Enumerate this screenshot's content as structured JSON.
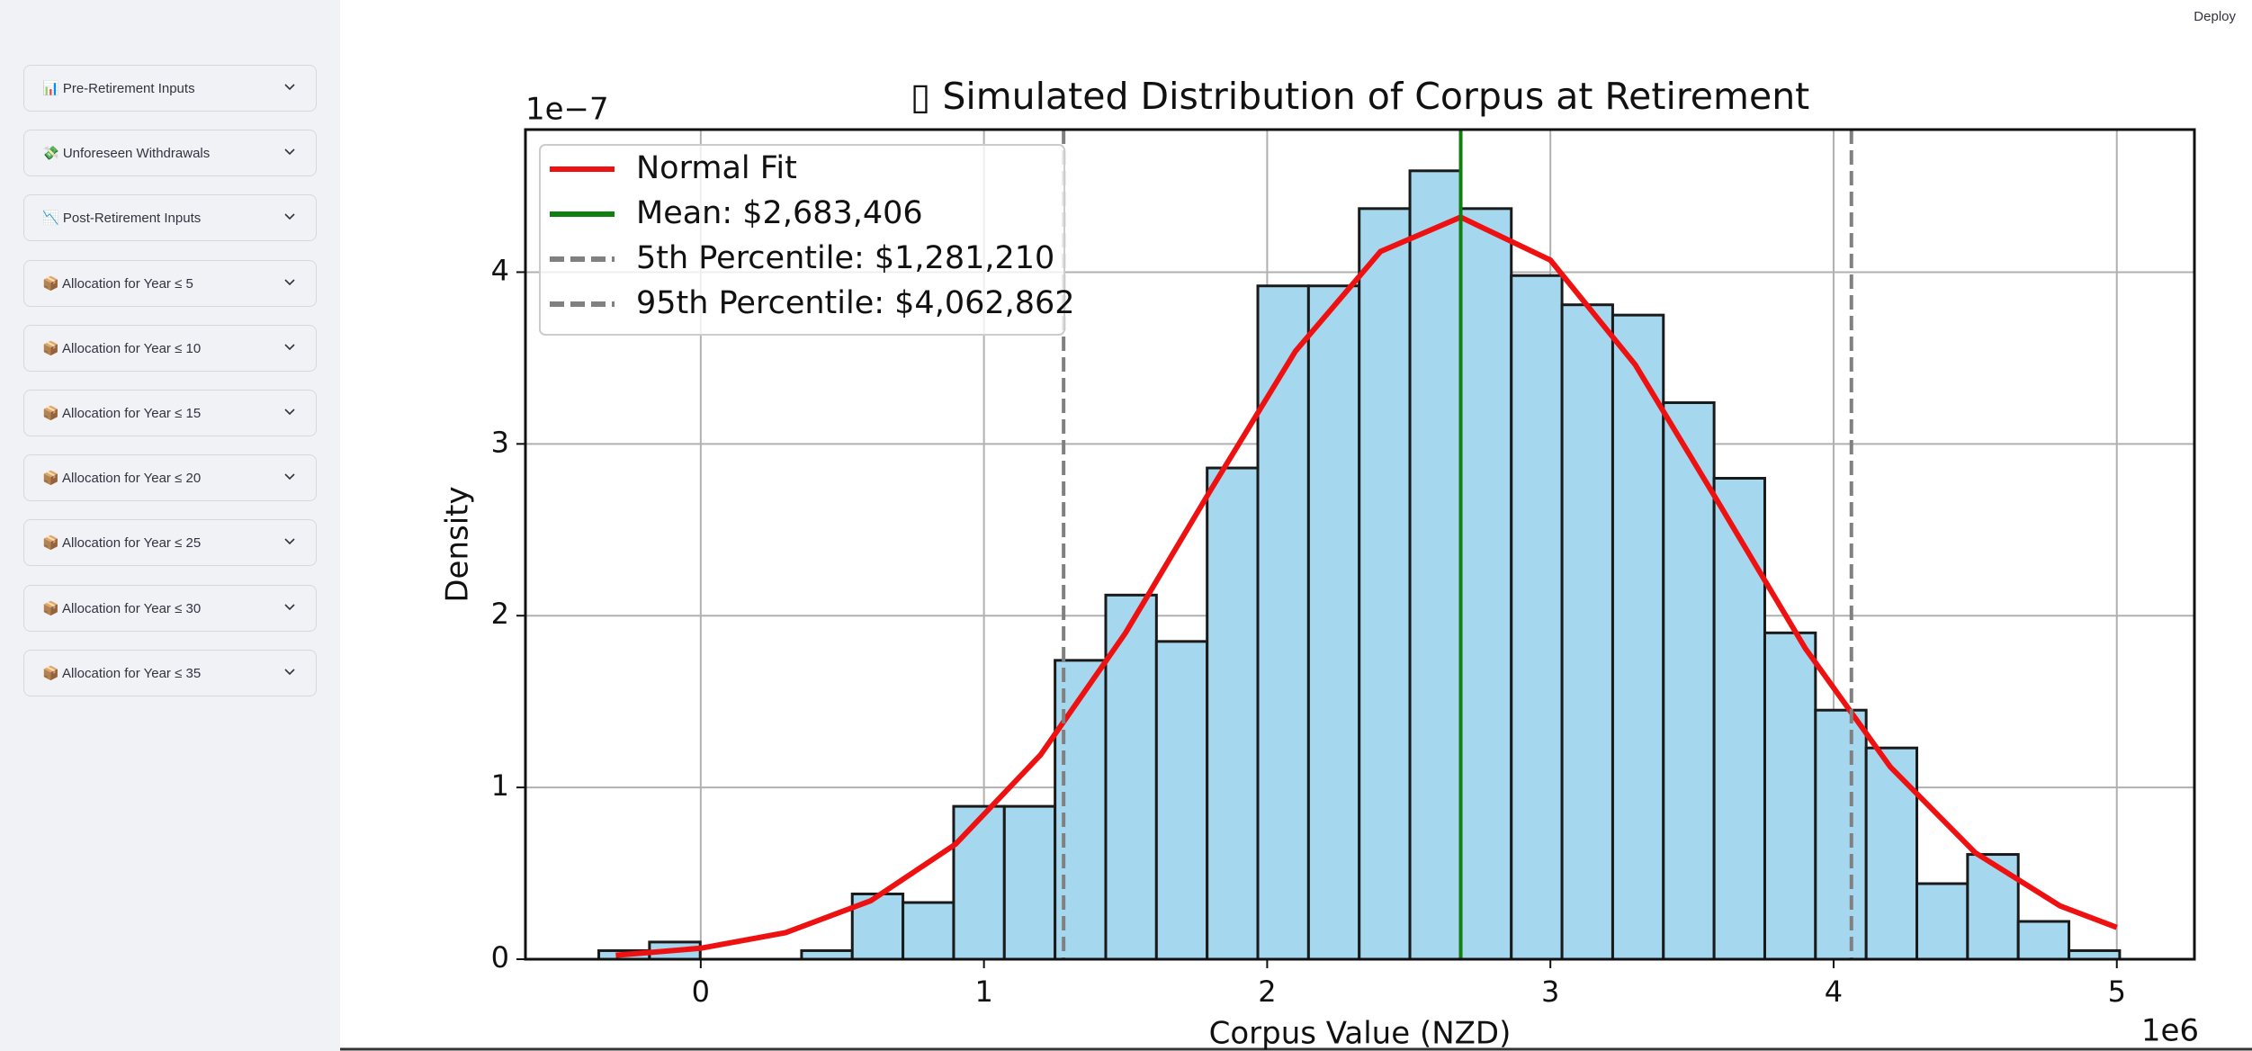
{
  "app": {
    "deploy": "Deploy"
  },
  "sidebar": {
    "items": [
      "📊 Pre-Retirement Inputs",
      "💸 Unforeseen Withdrawals",
      "📉 Post-Retirement Inputs",
      "📦 Allocation for Year ≤ 5",
      "📦 Allocation for Year ≤ 10",
      "📦 Allocation for Year ≤ 15",
      "📦 Allocation for Year ≤ 20",
      "📦 Allocation for Year ≤ 25",
      "📦 Allocation for Year ≤ 30",
      "📦 Allocation for Year ≤ 35"
    ]
  },
  "chart_data": {
    "type": "histogram",
    "title": "▯ Simulated Distribution of Corpus at Retirement",
    "xlabel": "Corpus Value (NZD)",
    "ylabel": "Density",
    "x_offset_label": "1e6",
    "y_offset_label": "1e−7",
    "bins": [
      -0.36,
      -0.181,
      -0.002,
      0.177,
      0.356,
      0.535,
      0.714,
      0.893,
      1.072,
      1.251,
      1.43,
      1.609,
      1.788,
      1.967,
      2.146,
      2.325,
      2.504,
      2.683,
      2.862,
      3.041,
      3.22,
      3.399,
      3.578,
      3.757,
      3.936,
      4.115,
      4.294,
      4.473,
      4.652,
      4.831,
      5.01
    ],
    "counts": [
      0.05,
      0.1,
      0,
      0,
      0.05,
      0.38,
      0.33,
      0.89,
      0.89,
      1.74,
      2.12,
      1.85,
      2.86,
      3.92,
      3.92,
      4.37,
      4.59,
      4.37,
      3.98,
      3.81,
      3.75,
      3.24,
      2.8,
      1.9,
      1.45,
      1.23,
      0.44,
      0.61,
      0.22,
      0.05
    ],
    "color": "#a5d8ee",
    "edgecolor": "#1a1a1a",
    "lines": [
      {
        "name": "Normal Fit",
        "color": "#ee1111",
        "x": [
          -0.3,
          0,
          0.3,
          0.6,
          0.9,
          1.2,
          1.5,
          1.8,
          2.1,
          2.4,
          2.683,
          3.0,
          3.3,
          3.6,
          3.9,
          4.2,
          4.5,
          4.8,
          5.0
        ],
        "values": [
          0.023,
          0.064,
          0.155,
          0.34,
          0.67,
          1.19,
          1.9,
          2.73,
          3.54,
          4.12,
          4.32,
          4.07,
          3.46,
          2.64,
          1.81,
          1.12,
          0.62,
          0.31,
          0.185
        ]
      }
    ],
    "vlines": [
      {
        "name": "Mean: $2,683,406",
        "color": "#108010",
        "value": 2.683406,
        "dashed": false
      },
      {
        "name": "5th Percentile: $1,281,210",
        "color": "#808080",
        "value": 1.28121,
        "dashed": true
      },
      {
        "name": "95th Percentile: $4,062,862",
        "color": "#808080",
        "value": 4.062862,
        "dashed": true
      }
    ],
    "xlim": [
      -0.619,
      5.274
    ],
    "ylim": [
      0,
      4.83
    ],
    "xticks": [
      0,
      1,
      2,
      3,
      4,
      5
    ],
    "yticks": [
      0,
      1,
      2,
      3,
      4
    ],
    "grid": true,
    "legend": "upper left"
  }
}
